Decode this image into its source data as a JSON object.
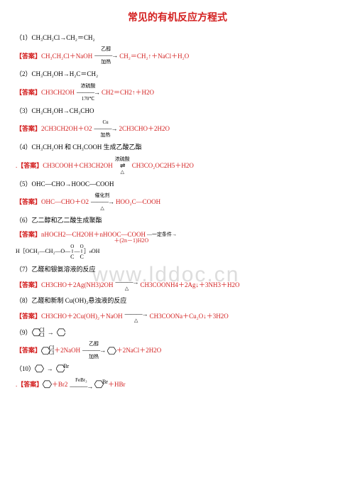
{
  "title": "常见的有机反应方程式",
  "watermark": "www.lddoc.cn",
  "items": [
    {
      "q_num": "（1）",
      "q": "CH₃CH₂Cl→CH₂＝CH₂"
    },
    {
      "ans": true,
      "pre": "CH₃CH₂Cl＋NaOH",
      "arrow_top": "乙醇",
      "arrow_bot": "加热",
      "post": "CH₂＝CH₂↑＋NaCl＋H₂O"
    },
    {
      "q_num": "（2）",
      "q": "CH₃CH₂OH→H₂C＝CH₂"
    },
    {
      "ans": true,
      "pre": "CH3CH2OH",
      "arrow_top": "浓硫酸",
      "arrow_bot": "170℃",
      "post": "CH2＝CH2↑＋H2O"
    },
    {
      "q_num": "（3）",
      "q": "CH₃CH₂OH→CH₃CHO"
    },
    {
      "ans": true,
      "pre": "2CH3CH2OH＋O2",
      "arrow_top": "Cu",
      "arrow_bot": "加热",
      "post": "2CH3CHO＋2H2O"
    },
    {
      "q_num": "（4）",
      "q": "CH₃CH₂OH 和 CH₃COOH 生成乙酸乙酯"
    },
    {
      "ans": true,
      "dot": true,
      "pre": "CH3COOH＋CH3CH2OH",
      "arrow_top": "浓硫酸",
      "arrow_bot": "△",
      "arrow_rev": true,
      "post": "CH3CO₂OC2H5＋H2O"
    },
    {
      "q_num": "（5）",
      "q": "OHC—CHO→HOOC—COOH"
    },
    {
      "ans": true,
      "pre": "OHC—CHO＋O2",
      "arrow_top": "催化剂",
      "arrow_bot": "△",
      "post": "HOO₂C—COOH"
    },
    {
      "q_num": "（6）",
      "q": "乙二醇和乙二酸生成聚酯"
    },
    {
      "ans": true,
      "plain": "nHOCH2—CH2OH＋nHOOC—COOH",
      "arrow_simple": "一定条件",
      "post_plain": ""
    },
    {
      "poly": true
    },
    {
      "q_num": "（7）",
      "q": "乙醛和银氨溶液的反应"
    },
    {
      "ans": true,
      "pre": "CH3CHO＋2Ag(NH3)2OH",
      "arrow_top": "",
      "arrow_bot": "△",
      "post": "CH3COONH4＋2Ag↓＋3NH3＋H2O"
    },
    {
      "q_num": "（8）",
      "q": "乙醛和新制 Cu(OH)₂悬浊液的反应"
    },
    {
      "ans": true,
      "pre": "CH3CHO＋2Cu(OH)₂＋NaOH",
      "arrow_top": "",
      "arrow_bot": "△",
      "post": "CH3COONa＋Cu₂O↓＋3H2O"
    },
    {
      "q_num": "（9）",
      "hex1": true
    },
    {
      "ans": true,
      "hex1_ans": true
    },
    {
      "q_num": "（10）",
      "hex2": true
    },
    {
      "ans": true,
      "dot": true,
      "hex2_ans": true
    }
  ]
}
